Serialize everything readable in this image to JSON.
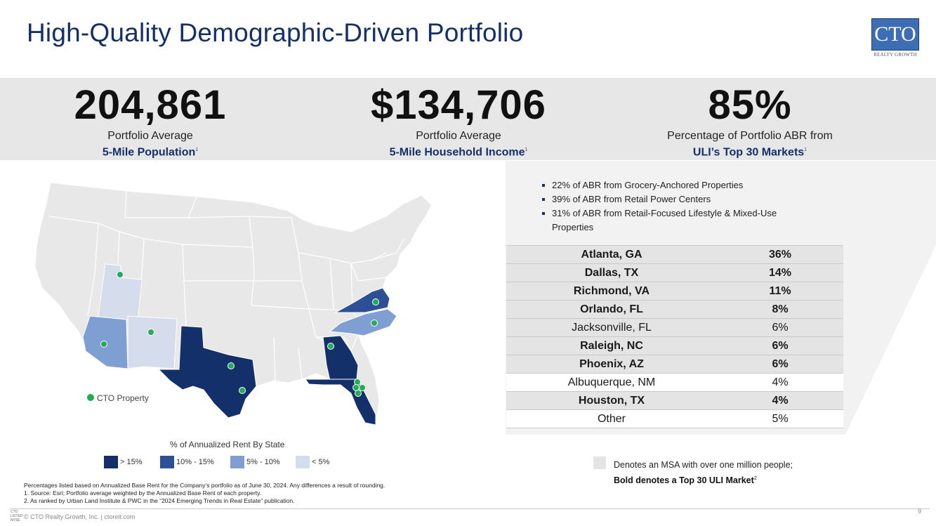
{
  "title": "High-Quality Demographic-Driven Portfolio",
  "logo": {
    "main": "CTO",
    "sub": "REALTY GROWTH"
  },
  "stats": [
    {
      "value": "204,861",
      "label": "Portfolio Average",
      "sub": "5-Mile Population",
      "note": "1"
    },
    {
      "value": "$134,706",
      "label": "Portfolio Average",
      "sub": "5-Mile Household Income",
      "note": "1"
    },
    {
      "value": "85%",
      "label": "Percentage of Portfolio ABR from",
      "sub": "ULI’s Top 30 Markets",
      "note": "1"
    }
  ],
  "bullets": [
    "22% of ABR from Grocery-Anchored Properties",
    "39% of ABR from Retail Power Centers",
    "31% of ABR from Retail-Focused Lifestyle & Mixed-Use Properties"
  ],
  "markets": [
    {
      "city": "Atlanta, GA",
      "pct": "36%",
      "shaded": true,
      "bold": true
    },
    {
      "city": "Dallas, TX",
      "pct": "14%",
      "shaded": true,
      "bold": true
    },
    {
      "city": "Richmond, VA",
      "pct": "11%",
      "shaded": true,
      "bold": true
    },
    {
      "city": "Orlando, FL",
      "pct": "8%",
      "shaded": true,
      "bold": true
    },
    {
      "city": "Jacksonville, FL",
      "pct": "6%",
      "shaded": true,
      "bold": false
    },
    {
      "city": "Raleigh, NC",
      "pct": "6%",
      "shaded": true,
      "bold": true
    },
    {
      "city": "Phoenix, AZ",
      "pct": "6%",
      "shaded": true,
      "bold": true
    },
    {
      "city": "Albuquerque, NM",
      "pct": "4%",
      "shaded": false,
      "bold": false
    },
    {
      "city": "Houston, TX",
      "pct": "4%",
      "shaded": true,
      "bold": true
    },
    {
      "city": "Other",
      "pct": "5%",
      "shaded": false,
      "bold": false
    }
  ],
  "msa_legend": {
    "line1": "Denotes an MSA with over one million people;",
    "line2": "Bold denotes a Top 30 ULI Market",
    "note": "2"
  },
  "map": {
    "property_label": "CTO Property",
    "scale_title": "% of Annualized Rent By State",
    "scale": [
      {
        "label": "> 15%",
        "color": "#14306b"
      },
      {
        "label": "10% - 15%",
        "color": "#2c4f96"
      },
      {
        "label": "5% - 10%",
        "color": "#7f9fd3"
      },
      {
        "label": "< 5%",
        "color": "#d5dcec"
      }
    ],
    "colors": {
      "base": "#e8e8e8",
      "dot": "#1fae55"
    }
  },
  "footnotes": [
    "Percentages listed based on Annualized Base Rent for the Company’s portfolio as of June 30, 2024. Any differences a result of rounding.",
    "1.    Source: Esri; Portfolio average weighted by the Annualized Base Rent of each property.",
    "2.    As ranked by Urban Land Institute & PWC in the “2024 Emerging Trends in Real Estate” publication."
  ],
  "footer": "© CTO Realty Growth, Inc. | ctoreit.com",
  "nyse": [
    "CTO",
    "LISTED",
    "NYSE"
  ],
  "page_number": "9"
}
